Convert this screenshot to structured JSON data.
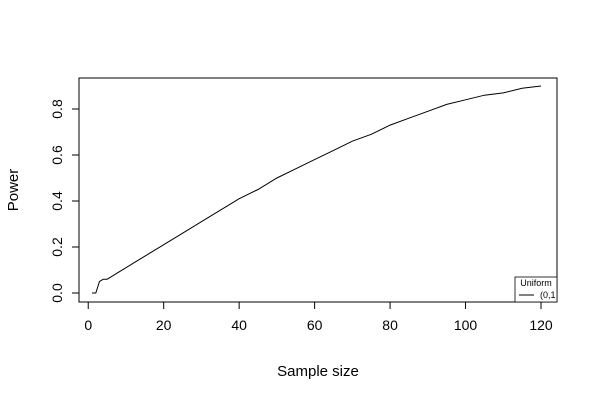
{
  "chart_data": {
    "type": "line",
    "title": "",
    "xlabel": "Sample size",
    "ylabel": "Power",
    "xlim": [
      1,
      120
    ],
    "ylim": [
      0.0,
      0.9
    ],
    "x_ticks": [
      0,
      20,
      40,
      60,
      80,
      100,
      120
    ],
    "y_ticks": [
      0.0,
      0.2,
      0.4,
      0.6,
      0.8
    ],
    "grid": false,
    "legend": {
      "placement": "bottom-right",
      "title": "Uniform",
      "entries": [
        "(0,1"
      ]
    },
    "series": [
      {
        "name": "(0,1",
        "x": [
          1,
          2,
          3,
          4,
          5,
          6,
          8,
          10,
          12,
          15,
          18,
          20,
          25,
          30,
          35,
          40,
          45,
          50,
          55,
          60,
          65,
          70,
          75,
          80,
          85,
          90,
          95,
          100,
          105,
          110,
          115,
          120
        ],
        "y": [
          0.0,
          0.0,
          0.05,
          0.06,
          0.06,
          0.07,
          0.09,
          0.11,
          0.13,
          0.16,
          0.19,
          0.21,
          0.26,
          0.31,
          0.36,
          0.41,
          0.45,
          0.5,
          0.54,
          0.58,
          0.62,
          0.66,
          0.69,
          0.73,
          0.76,
          0.79,
          0.82,
          0.84,
          0.86,
          0.87,
          0.89,
          0.9
        ]
      }
    ]
  }
}
